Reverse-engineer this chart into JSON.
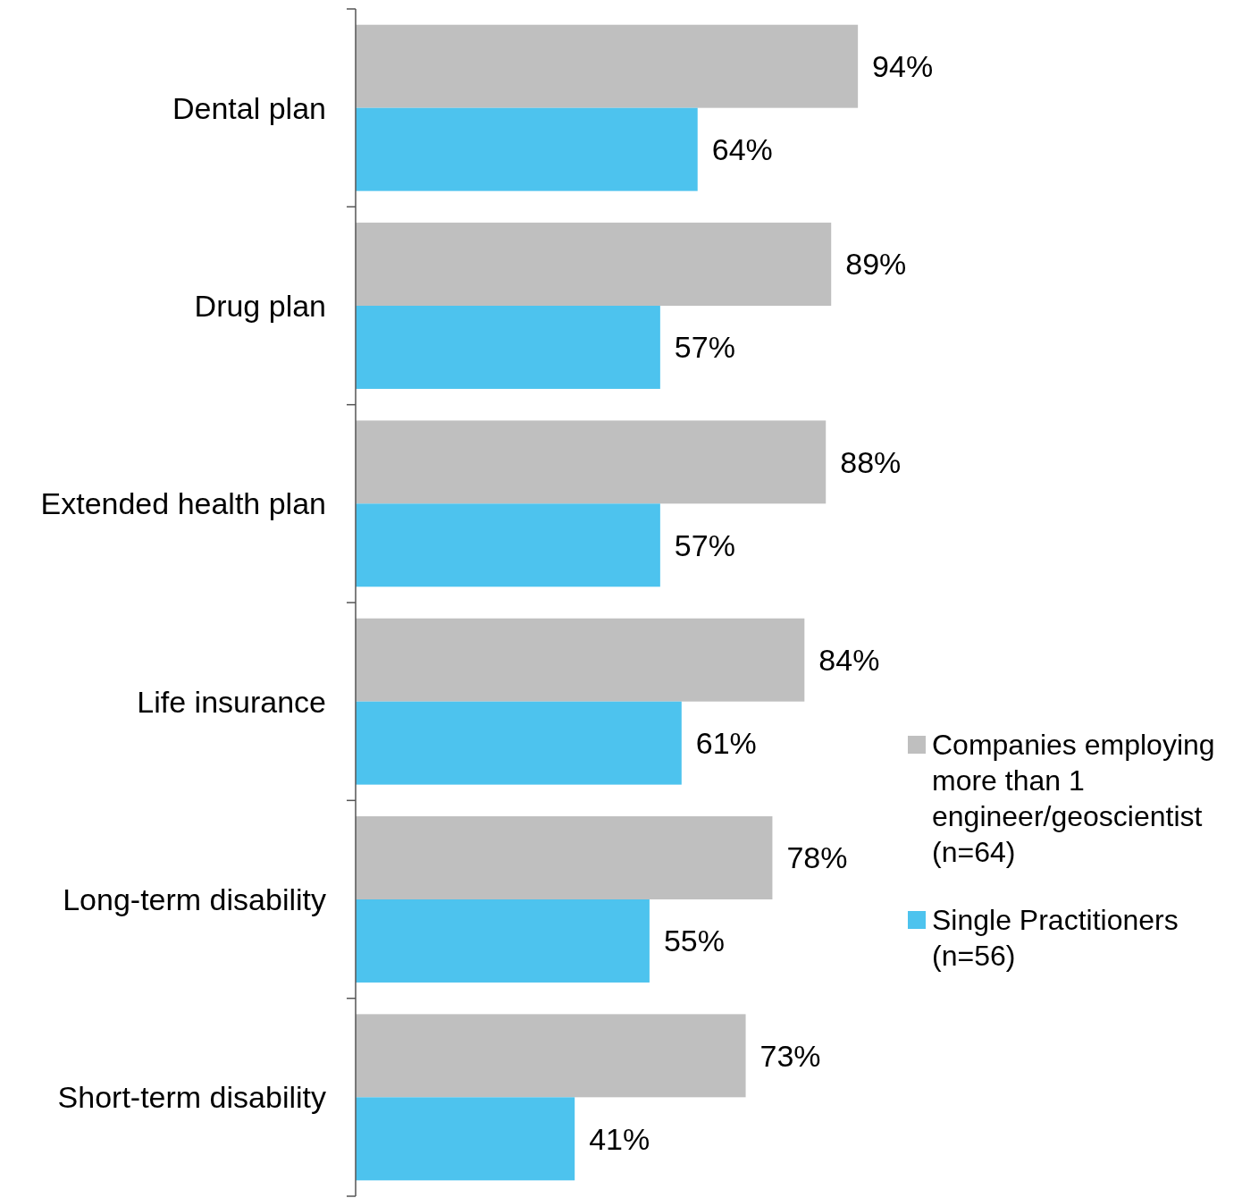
{
  "chart_data": {
    "type": "bar",
    "orientation": "horizontal",
    "categories": [
      "Dental plan",
      "Drug plan",
      "Extended health plan",
      "Life insurance",
      "Long-term disability",
      "Short-term disability"
    ],
    "series": [
      {
        "name": "Companies employing more than 1 engineer/geoscientist (n=64)",
        "color": "#bfbfbf",
        "values": [
          94,
          89,
          88,
          84,
          78,
          73
        ],
        "value_labels": [
          "94%",
          "89%",
          "88%",
          "84%",
          "78%",
          "73%"
        ]
      },
      {
        "name": "Single Practitioners (n=56)",
        "color": "#4dc3ee",
        "values": [
          64,
          57,
          57,
          61,
          55,
          41
        ],
        "value_labels": [
          "64%",
          "57%",
          "57%",
          "61%",
          "55%",
          "41%"
        ]
      }
    ],
    "tick_labels": "y",
    "legend": "right"
  }
}
